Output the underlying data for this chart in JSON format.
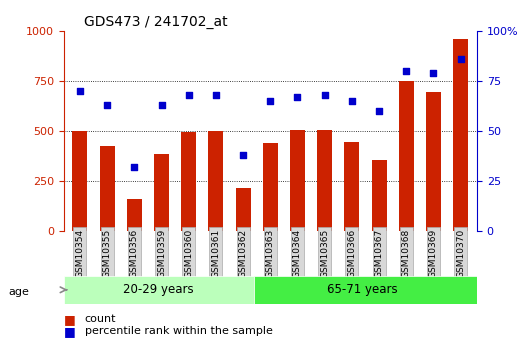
{
  "title": "GDS473 / 241702_at",
  "samples": [
    "GSM10354",
    "GSM10355",
    "GSM10356",
    "GSM10359",
    "GSM10360",
    "GSM10361",
    "GSM10362",
    "GSM10363",
    "GSM10364",
    "GSM10365",
    "GSM10366",
    "GSM10367",
    "GSM10368",
    "GSM10369",
    "GSM10370"
  ],
  "counts": [
    500,
    425,
    160,
    385,
    495,
    500,
    215,
    440,
    505,
    505,
    445,
    355,
    750,
    695,
    960
  ],
  "percentile": [
    70,
    63,
    32,
    63,
    68,
    68,
    38,
    65,
    67,
    68,
    65,
    60,
    80,
    79,
    86
  ],
  "group1_label": "20-29 years",
  "group2_label": "65-71 years",
  "group1_count": 7,
  "group2_count": 8,
  "bar_color": "#cc2200",
  "dot_color": "#0000cc",
  "group1_bg": "#bbffbb",
  "group2_bg": "#44ee44",
  "age_label": "age",
  "legend_count": "count",
  "legend_pct": "percentile rank within the sample",
  "ylim_left": [
    0,
    1000
  ],
  "ylim_right": [
    0,
    100
  ],
  "yticks_left": [
    0,
    250,
    500,
    750,
    1000
  ],
  "yticks_right": [
    0,
    25,
    50,
    75,
    100
  ],
  "grid_lines": [
    250,
    500,
    750
  ],
  "bg_color": "#ffffff"
}
